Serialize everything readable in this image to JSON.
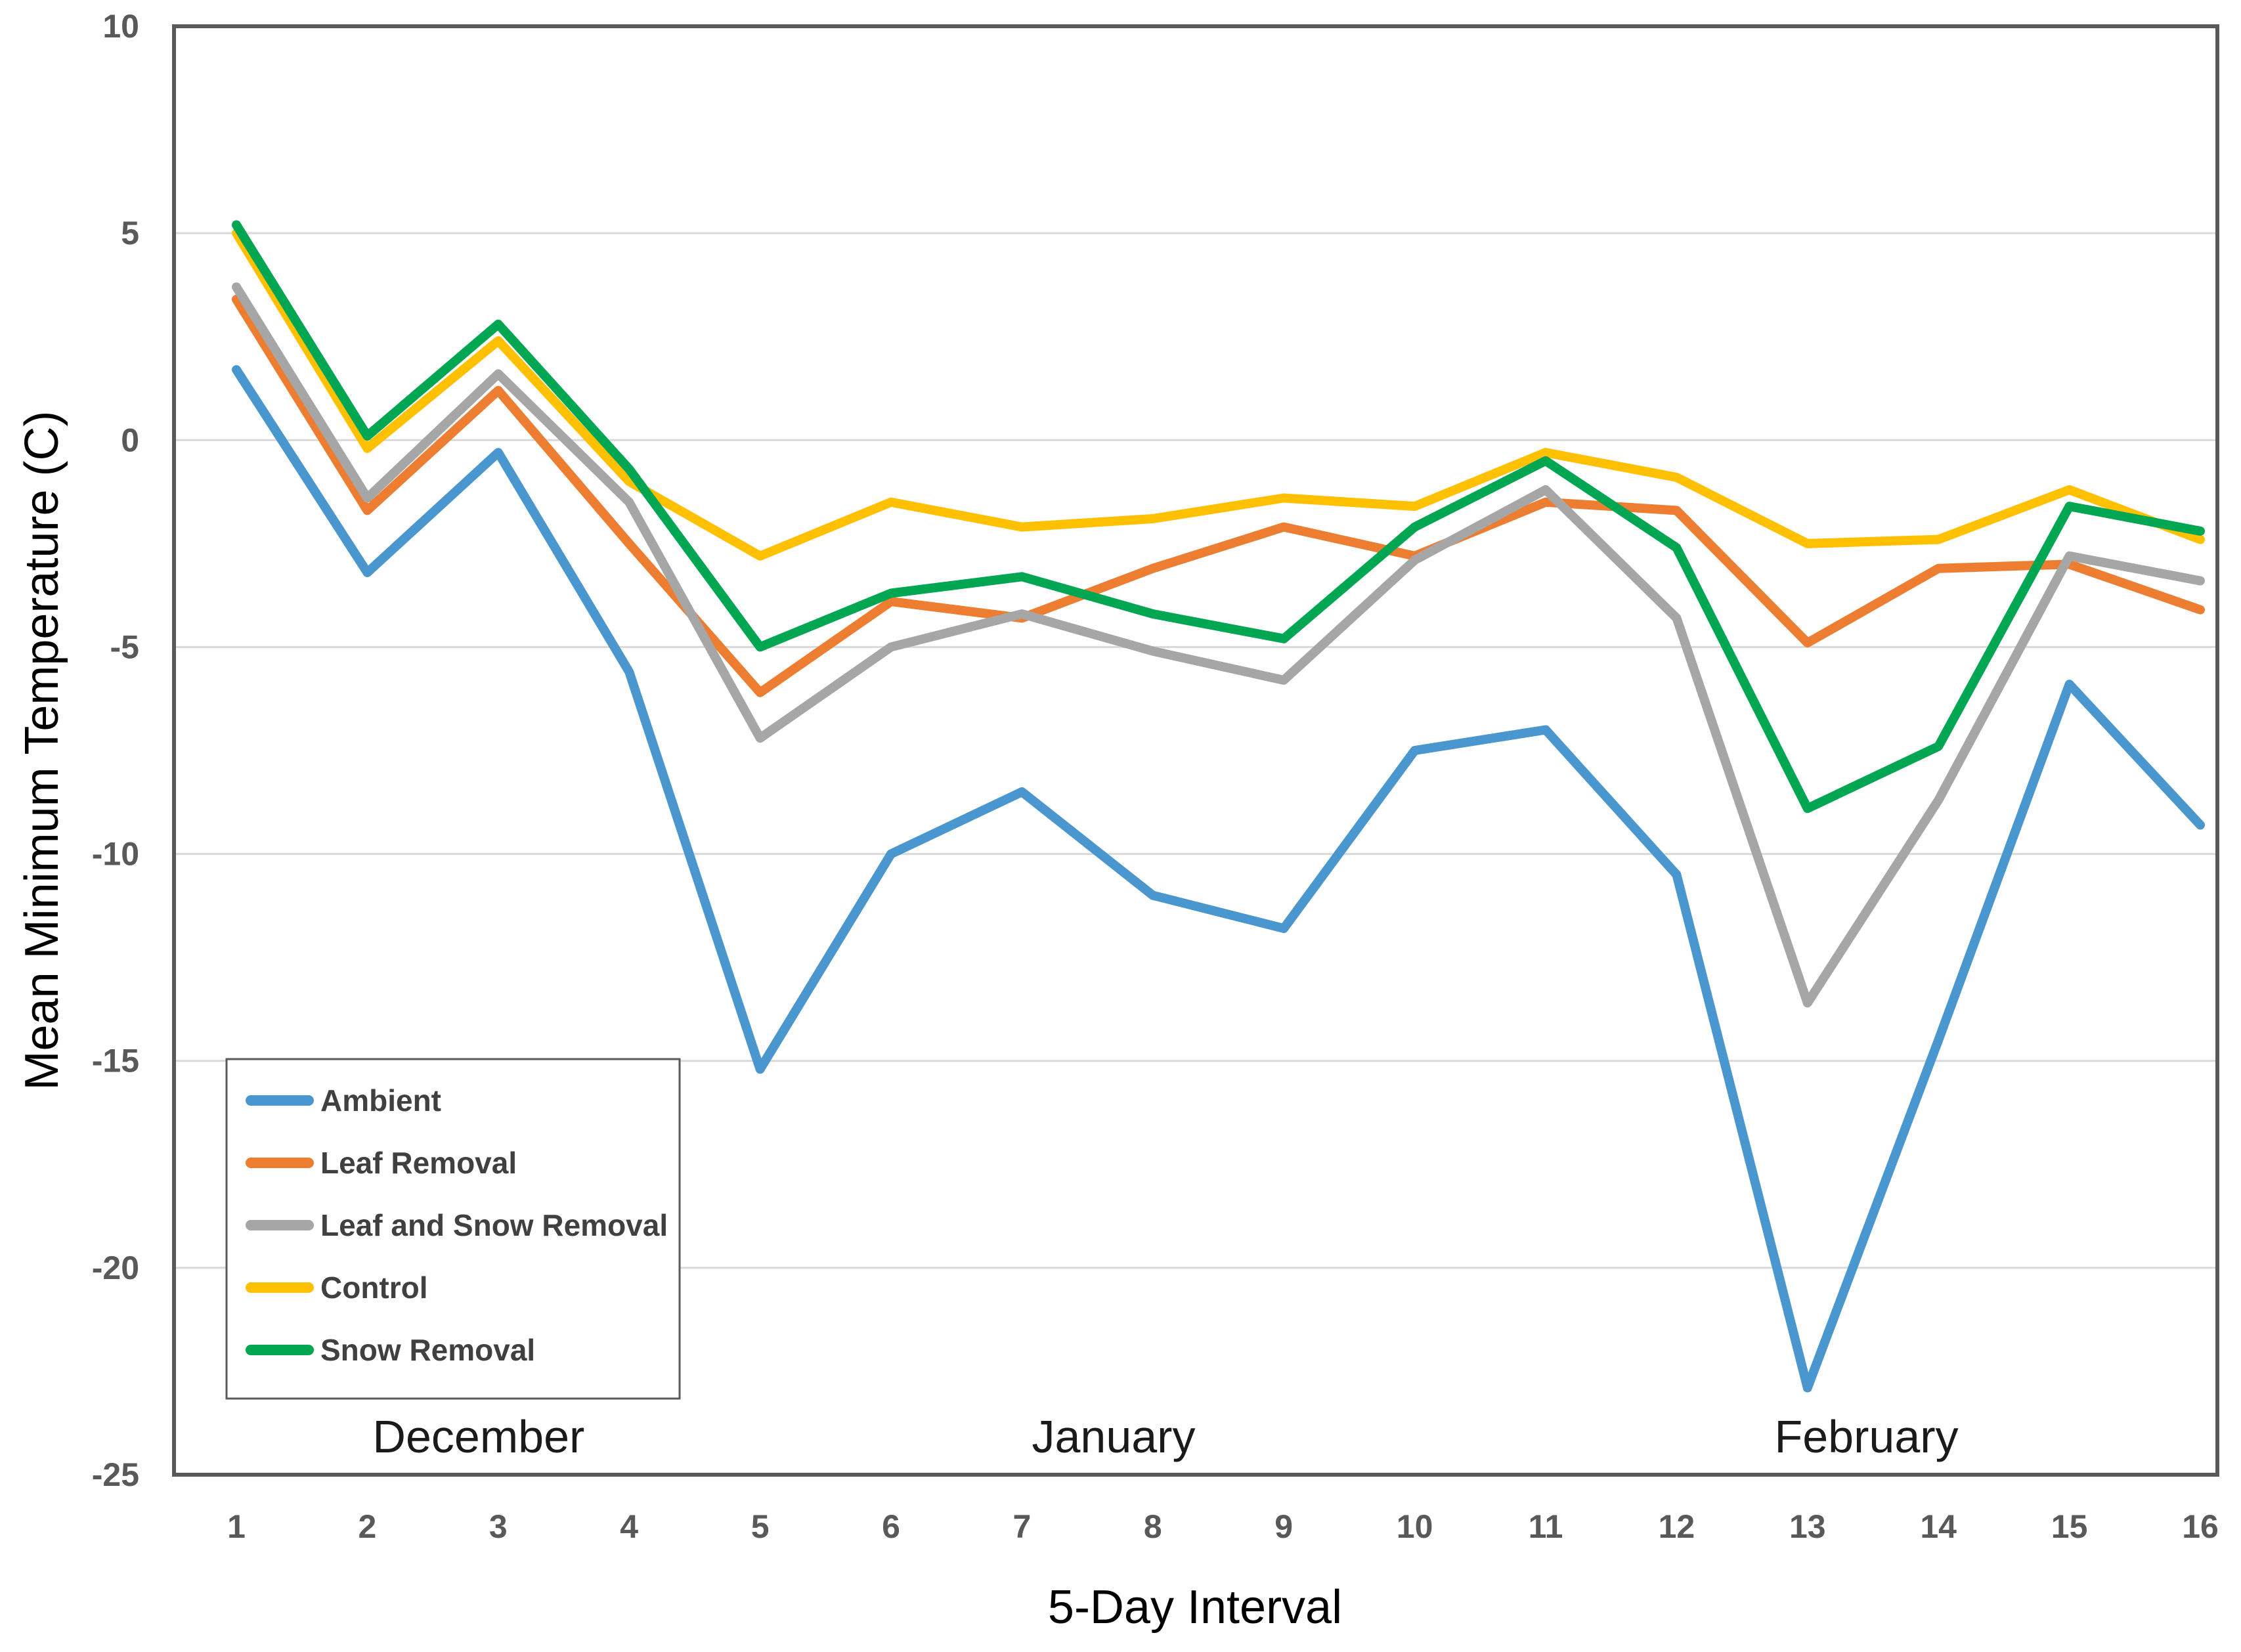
{
  "chart_data": {
    "type": "line",
    "x": [
      1,
      2,
      3,
      4,
      5,
      6,
      7,
      8,
      9,
      10,
      11,
      12,
      13,
      14,
      15,
      16
    ],
    "x_tick_labels": [
      "1",
      "2",
      "3",
      "4",
      "5",
      "6",
      "7",
      "8",
      "9",
      "10",
      "11",
      "12",
      "13",
      "14",
      "15",
      "16"
    ],
    "y_ticks": [
      10,
      5,
      0,
      -5,
      -10,
      -15,
      -20,
      -25
    ],
    "ylim": [
      -25,
      10
    ],
    "xlabel": "5-Day Interval",
    "ylabel": "Mean Minimum Temperature (C)",
    "grid": true,
    "legend_position": "inside-bottom-left",
    "series": [
      {
        "name": "Ambient",
        "color": "#4A96CE",
        "values": [
          1.7,
          -3.2,
          -0.3,
          -5.6,
          -15.2,
          -10.0,
          -8.5,
          -11.0,
          -11.8,
          -7.5,
          -7.0,
          -10.5,
          -22.9,
          -14.5,
          -5.9,
          -9.3
        ]
      },
      {
        "name": "Leaf Removal",
        "color": "#ED7D31",
        "values": [
          3.4,
          -1.7,
          1.2,
          -2.5,
          -6.1,
          -3.9,
          -4.3,
          -3.1,
          -2.1,
          -2.8,
          -1.5,
          -1.7,
          -4.9,
          -3.1,
          -3.0,
          -4.1
        ]
      },
      {
        "name": "Leaf and Snow Removal",
        "color": "#A6A6A6",
        "values": [
          3.7,
          -1.4,
          1.6,
          -1.5,
          -7.2,
          -5.0,
          -4.2,
          -5.1,
          -5.8,
          -2.9,
          -1.2,
          -4.3,
          -13.6,
          -8.7,
          -2.8,
          -3.4
        ]
      },
      {
        "name": "Control",
        "color": "#FFC000",
        "values": [
          5.0,
          -0.2,
          2.4,
          -1.0,
          -2.8,
          -1.5,
          -2.1,
          -1.9,
          -1.4,
          -1.6,
          -0.3,
          -0.9,
          -2.5,
          -2.4,
          -1.2,
          -2.4
        ]
      },
      {
        "name": "Snow Removal",
        "color": "#00A651",
        "values": [
          5.2,
          0.1,
          2.8,
          -0.7,
          -5.0,
          -3.7,
          -3.3,
          -4.2,
          -4.8,
          -2.1,
          -0.5,
          -2.6,
          -8.9,
          -7.4,
          -1.6,
          -2.2
        ]
      }
    ],
    "annotations": [
      {
        "text": "December",
        "x": 2.85
      },
      {
        "text": "January",
        "x": 7.7
      },
      {
        "text": "February",
        "x": 13.45
      }
    ],
    "axis_color": "#595959",
    "grid_color": "#D9D9D9",
    "tick_label_color": "#595959",
    "month_label_color": "#1A1A1A",
    "legend_text_color": "#404040",
    "background_color": "#FFFFFF"
  }
}
